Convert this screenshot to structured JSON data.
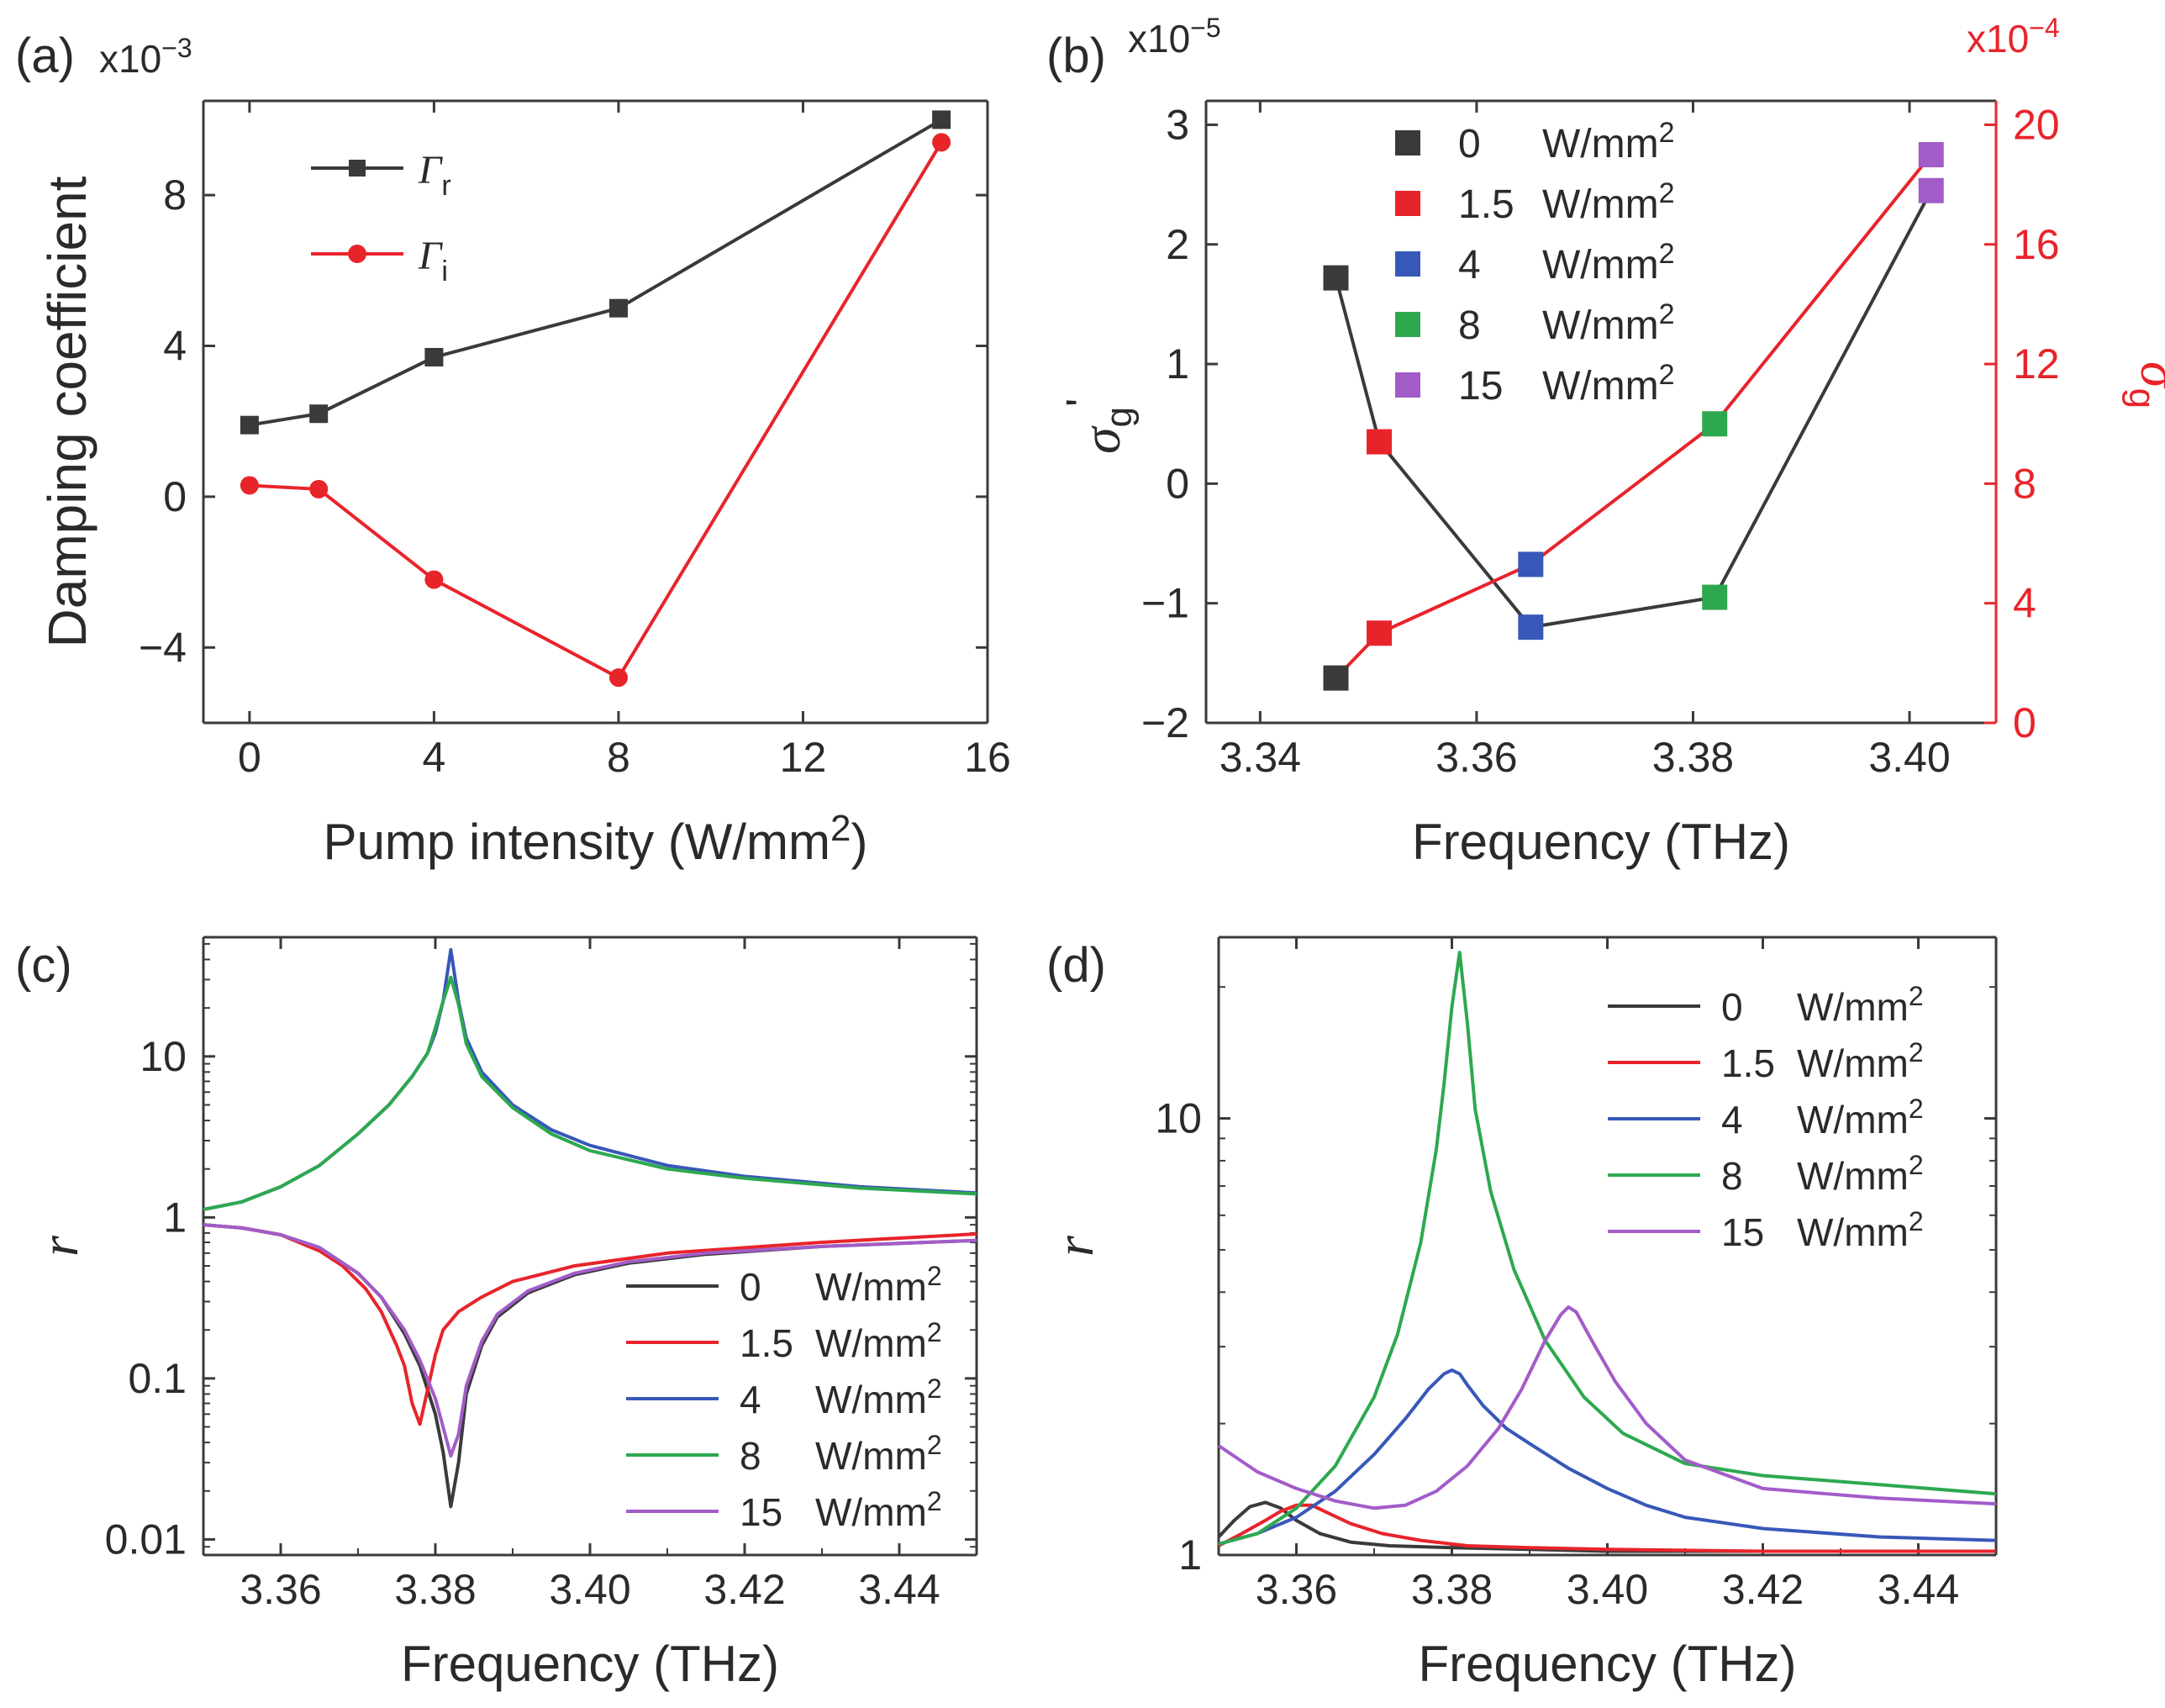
{
  "chart_data": [
    {
      "id": "a",
      "panel_label": "(a)",
      "type": "line",
      "scale_label": "x10",
      "scale_exponent": "−3",
      "xlabel": "Pump intensity (W/mm",
      "xlabel_sup": "2",
      "xlabel_end": ")",
      "ylabel": "Damping coefficient",
      "xlim": [
        -1,
        16
      ],
      "ylim": [
        -6,
        10.5
      ],
      "xticks": [
        0,
        4,
        8,
        12,
        16
      ],
      "yticks": [
        -4,
        0,
        4,
        8
      ],
      "ytick_labels": [
        "−4",
        "0",
        "4",
        "8"
      ],
      "legend_position": "top-left",
      "series": [
        {
          "name": "Γ",
          "sub": "r",
          "color": "#3a3a3a",
          "marker": "square",
          "x": [
            0,
            1.5,
            4,
            8,
            15
          ],
          "y": [
            1.9,
            2.2,
            3.7,
            5.0,
            10.0
          ]
        },
        {
          "name": "Γ",
          "sub": "i",
          "color": "#e8242b",
          "marker": "circle",
          "x": [
            0,
            1.5,
            4,
            8,
            15
          ],
          "y": [
            0.3,
            0.2,
            -2.2,
            -4.8,
            9.4
          ]
        }
      ]
    },
    {
      "id": "b",
      "panel_label": "(b)",
      "type": "scatter",
      "scale_label_left": "x10",
      "scale_exponent_left": "−5",
      "scale_label_right": "x10",
      "scale_exponent_right": "−4",
      "xlabel": "Frequency (THz)",
      "ylabel_left": "σ",
      "ylabel_left_sub": "g",
      "ylabel_left_mark": "'",
      "ylabel_right": "σ",
      "ylabel_right_sub": "g",
      "ylabel_right_mark": "\"",
      "xlim": [
        3.335,
        3.408
      ],
      "ylim_left": [
        -2,
        3.2
      ],
      "ylim_right": [
        0,
        20.8
      ],
      "xticks": [
        3.34,
        3.36,
        3.38,
        3.4
      ],
      "xtick_labels": [
        "3.34",
        "3.36",
        "3.38",
        "3.40"
      ],
      "yticks_left": [
        -2,
        -1,
        0,
        1,
        2,
        3
      ],
      "ytick_labels_left": [
        "−2",
        "−1",
        "0",
        "1",
        "2",
        "3"
      ],
      "yticks_right": [
        0,
        4,
        8,
        12,
        16,
        20
      ],
      "left_axis_color": "#3a3a3a",
      "right_axis_color": "#e8242b",
      "legend_position": "top-center",
      "legend": [
        {
          "value": "0",
          "unit": "W/mm",
          "sup": "2",
          "color": "#3a3a3a"
        },
        {
          "value": "1.5",
          "unit": "W/mm",
          "sup": "2",
          "color": "#e8242b"
        },
        {
          "value": "4",
          "unit": "W/mm",
          "sup": "2",
          "color": "#3758b8"
        },
        {
          "value": "8",
          "unit": "W/mm",
          "sup": "2",
          "color": "#2ea84f"
        },
        {
          "value": "15",
          "unit": "W/mm",
          "sup": "2",
          "color": "#a25cc8"
        }
      ],
      "series": [
        {
          "name": "σg' (left axis)",
          "axis": "left",
          "line_color": "#3a3a3a",
          "x": [
            3.347,
            3.351,
            3.365,
            3.382,
            3.402
          ],
          "y": [
            1.72,
            0.35,
            -1.2,
            -0.95,
            2.45
          ],
          "marker_colors": [
            "#3a3a3a",
            "#e8242b",
            "#3758b8",
            "#2ea84f",
            "#a25cc8"
          ]
        },
        {
          "name": "σg\" (right axis)",
          "axis": "right",
          "line_color": "#e8242b",
          "x": [
            3.347,
            3.351,
            3.365,
            3.382,
            3.402
          ],
          "y": [
            1.5,
            3.0,
            5.3,
            10.0,
            19.0
          ],
          "marker_colors": [
            "#3a3a3a",
            "#e8242b",
            "#3758b8",
            "#2ea84f",
            "#a25cc8"
          ]
        }
      ]
    },
    {
      "id": "c",
      "panel_label": "(c)",
      "type": "line",
      "yscale": "log",
      "xlabel": "Frequency (THz)",
      "ylabel": "r",
      "xlim": [
        3.35,
        3.45
      ],
      "ylim": [
        0.008,
        55
      ],
      "xticks": [
        3.36,
        3.38,
        3.4,
        3.42,
        3.44
      ],
      "xtick_labels": [
        "3.36",
        "3.38",
        "3.40",
        "3.42",
        "3.44"
      ],
      "yticks": [
        0.01,
        0.1,
        1,
        10
      ],
      "ytick_labels": [
        "0.01",
        "0.1",
        "1",
        "10"
      ],
      "legend_position": "bottom-right",
      "series": [
        {
          "name": "0",
          "unit": "W/mm",
          "sup": "2",
          "color": "#3a3a3a",
          "x": [
            3.35,
            3.355,
            3.36,
            3.365,
            3.37,
            3.373,
            3.376,
            3.378,
            3.38,
            3.381,
            3.382,
            3.383,
            3.384,
            3.386,
            3.388,
            3.392,
            3.398,
            3.405,
            3.415,
            3.43,
            3.45
          ],
          "y": [
            0.9,
            0.86,
            0.78,
            0.65,
            0.45,
            0.32,
            0.19,
            0.12,
            0.06,
            0.035,
            0.016,
            0.03,
            0.08,
            0.16,
            0.24,
            0.34,
            0.44,
            0.52,
            0.59,
            0.66,
            0.72
          ]
        },
        {
          "name": "1.5",
          "unit": "W/mm",
          "sup": "2",
          "color": "#e8242b",
          "x": [
            3.35,
            3.355,
            3.36,
            3.365,
            3.368,
            3.371,
            3.373,
            3.375,
            3.376,
            3.377,
            3.378,
            3.379,
            3.38,
            3.381,
            3.383,
            3.386,
            3.39,
            3.398,
            3.41,
            3.43,
            3.45
          ],
          "y": [
            0.9,
            0.86,
            0.78,
            0.62,
            0.5,
            0.36,
            0.26,
            0.16,
            0.12,
            0.07,
            0.052,
            0.085,
            0.14,
            0.2,
            0.26,
            0.32,
            0.4,
            0.5,
            0.6,
            0.7,
            0.79
          ]
        },
        {
          "name": "4",
          "unit": "W/mm",
          "sup": "2",
          "color": "#3758b8",
          "x": [
            3.35,
            3.355,
            3.36,
            3.365,
            3.37,
            3.374,
            3.377,
            3.379,
            3.38,
            3.381,
            3.382,
            3.383,
            3.384,
            3.386,
            3.39,
            3.395,
            3.4,
            3.41,
            3.42,
            3.435,
            3.45
          ],
          "y": [
            1.12,
            1.25,
            1.55,
            2.1,
            3.3,
            5.0,
            7.5,
            10.5,
            14.0,
            22.0,
            46.0,
            22.0,
            13.0,
            8.0,
            5.0,
            3.5,
            2.8,
            2.1,
            1.8,
            1.55,
            1.42
          ]
        },
        {
          "name": "8",
          "unit": "W/mm",
          "sup": "2",
          "color": "#2ea84f",
          "x": [
            3.35,
            3.355,
            3.36,
            3.365,
            3.37,
            3.374,
            3.377,
            3.379,
            3.38,
            3.381,
            3.382,
            3.383,
            3.384,
            3.386,
            3.39,
            3.395,
            3.4,
            3.41,
            3.42,
            3.435,
            3.45
          ],
          "y": [
            1.12,
            1.25,
            1.55,
            2.1,
            3.3,
            5.0,
            7.5,
            10.5,
            15.0,
            22.0,
            31.0,
            21.0,
            12.0,
            7.5,
            4.8,
            3.3,
            2.6,
            2.0,
            1.75,
            1.52,
            1.4
          ]
        },
        {
          "name": "15",
          "unit": "W/mm",
          "sup": "2",
          "color": "#a25cc8",
          "x": [
            3.35,
            3.355,
            3.36,
            3.365,
            3.37,
            3.373,
            3.376,
            3.378,
            3.38,
            3.381,
            3.382,
            3.383,
            3.384,
            3.386,
            3.388,
            3.392,
            3.398,
            3.405,
            3.415,
            3.43,
            3.45
          ],
          "y": [
            0.9,
            0.86,
            0.78,
            0.65,
            0.45,
            0.32,
            0.2,
            0.13,
            0.075,
            0.05,
            0.033,
            0.045,
            0.09,
            0.17,
            0.25,
            0.35,
            0.45,
            0.53,
            0.6,
            0.66,
            0.72
          ]
        }
      ]
    },
    {
      "id": "d",
      "panel_label": "(d)",
      "type": "line",
      "yscale": "log",
      "xlabel": "Frequency (THz)",
      "ylabel": "r",
      "xlim": [
        3.35,
        3.45
      ],
      "ylim": [
        1,
        26
      ],
      "xticks": [
        3.36,
        3.38,
        3.4,
        3.42,
        3.44
      ],
      "xtick_labels": [
        "3.36",
        "3.38",
        "3.40",
        "3.42",
        "3.44"
      ],
      "yticks": [
        1,
        10
      ],
      "ytick_labels": [
        "1",
        "10"
      ],
      "legend_position": "top-right",
      "series": [
        {
          "name": "0",
          "unit": "W/mm",
          "sup": "2",
          "color": "#3a3a3a",
          "x": [
            3.35,
            3.352,
            3.354,
            3.356,
            3.358,
            3.36,
            3.363,
            3.367,
            3.372,
            3.38,
            3.39,
            3.4,
            3.42,
            3.45
          ],
          "y": [
            1.1,
            1.2,
            1.29,
            1.32,
            1.28,
            1.2,
            1.12,
            1.07,
            1.05,
            1.04,
            1.03,
            1.02,
            1.02,
            1.02
          ]
        },
        {
          "name": "1.5",
          "unit": "W/mm",
          "sup": "2",
          "color": "#e8242b",
          "x": [
            3.35,
            3.353,
            3.356,
            3.358,
            3.36,
            3.362,
            3.364,
            3.367,
            3.371,
            3.376,
            3.382,
            3.39,
            3.4,
            3.42,
            3.45
          ],
          "y": [
            1.05,
            1.12,
            1.2,
            1.26,
            1.3,
            1.3,
            1.25,
            1.18,
            1.12,
            1.08,
            1.05,
            1.04,
            1.03,
            1.02,
            1.02
          ]
        },
        {
          "name": "4",
          "unit": "W/mm",
          "sup": "2",
          "color": "#3758b8",
          "x": [
            3.35,
            3.355,
            3.36,
            3.365,
            3.37,
            3.374,
            3.377,
            3.379,
            3.38,
            3.381,
            3.382,
            3.384,
            3.387,
            3.39,
            3.395,
            3.4,
            3.405,
            3.41,
            3.42,
            3.435,
            3.45
          ],
          "y": [
            1.06,
            1.12,
            1.22,
            1.4,
            1.7,
            2.05,
            2.4,
            2.6,
            2.65,
            2.6,
            2.45,
            2.2,
            1.95,
            1.8,
            1.58,
            1.42,
            1.3,
            1.22,
            1.15,
            1.1,
            1.08
          ]
        },
        {
          "name": "8",
          "unit": "W/mm",
          "sup": "2",
          "color": "#2ea84f",
          "x": [
            3.35,
            3.355,
            3.36,
            3.365,
            3.37,
            3.373,
            3.376,
            3.378,
            3.379,
            3.38,
            3.381,
            3.382,
            3.383,
            3.385,
            3.388,
            3.392,
            3.397,
            3.402,
            3.41,
            3.42,
            3.435,
            3.45
          ],
          "y": [
            1.06,
            1.12,
            1.28,
            1.6,
            2.3,
            3.2,
            5.2,
            8.5,
            12.0,
            18.0,
            24.0,
            16.5,
            10.5,
            6.8,
            4.5,
            3.1,
            2.3,
            1.9,
            1.62,
            1.52,
            1.45,
            1.38
          ]
        },
        {
          "name": "15",
          "unit": "W/mm",
          "sup": "2",
          "color": "#a25cc8",
          "x": [
            3.35,
            3.355,
            3.36,
            3.365,
            3.37,
            3.374,
            3.378,
            3.382,
            3.386,
            3.389,
            3.392,
            3.394,
            3.395,
            3.396,
            3.398,
            3.401,
            3.405,
            3.41,
            3.42,
            3.435,
            3.45
          ],
          "y": [
            1.78,
            1.55,
            1.42,
            1.33,
            1.28,
            1.3,
            1.4,
            1.6,
            1.95,
            2.4,
            3.1,
            3.55,
            3.7,
            3.6,
            3.1,
            2.5,
            2.0,
            1.65,
            1.42,
            1.35,
            1.31
          ]
        }
      ]
    }
  ]
}
